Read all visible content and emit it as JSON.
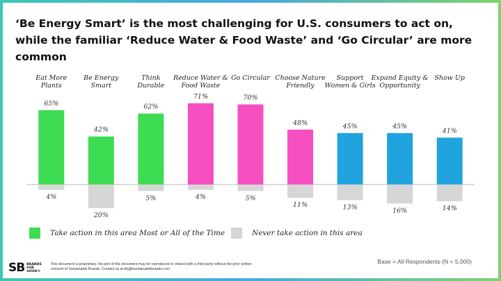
{
  "slide": {
    "title": "‘Be Energy Smart’ is the most challenging for U.S. consumers to act on, while the familiar ‘Reduce Water & Food Waste’ and ‘Go Circular’ are more common",
    "base_note": "Base = All Respondents (N = 5,000)",
    "footer_note": "This document is proprietary. No part of this document may be reproduced or shared with a third party without the prior written consent of Sustainable Brands. Contact us at bfg@sustainablebrands.com",
    "logo": {
      "mark": "SB",
      "text": "BRANDS FOR GOOD®"
    }
  },
  "colors": {
    "green": "#3ddc52",
    "pink": "#f54fc2",
    "blue": "#21a3dd",
    "gray": "#d6d6d6",
    "baseline": "#b8b8b8"
  },
  "legend": [
    {
      "label": "Take action in this area Most or All of the Time",
      "color": "#3ddc52"
    },
    {
      "label": "Never take action in this area",
      "color": "#d6d6d6"
    }
  ],
  "chart_data": {
    "type": "bar",
    "title": "",
    "categories": [
      "Eat More Plants",
      "Be Energy Smart",
      "Think Durable",
      "Reduce Water & Food Waste",
      "Go Circular",
      "Choose Nature Friendly",
      "Support Women & Girls",
      "Expand Equity & Opportunity",
      "Show Up"
    ],
    "category_label_lines": [
      [
        "Eat More",
        "Plants"
      ],
      [
        "Be Energy",
        "Smart"
      ],
      [
        "Think",
        "Durable"
      ],
      [
        "Reduce Water &",
        "Food Waste"
      ],
      [
        "Go Circular"
      ],
      [
        "Choose Nature",
        "Friendly"
      ],
      [
        "Support",
        "Women & Girls"
      ],
      [
        "Expand Equity &",
        "Opportunity"
      ],
      [
        "Show Up"
      ]
    ],
    "category_colors": [
      "green",
      "green",
      "green",
      "pink",
      "pink",
      "pink",
      "blue",
      "blue",
      "blue"
    ],
    "series": [
      {
        "name": "Take action in this area Most or All of the Time",
        "values": [
          65,
          42,
          62,
          71,
          70,
          48,
          45,
          45,
          41
        ],
        "direction": "up"
      },
      {
        "name": "Never take action in this area",
        "values": [
          4,
          20,
          5,
          4,
          5,
          11,
          13,
          16,
          14
        ],
        "direction": "down"
      }
    ],
    "value_suffix": "%",
    "ylim": [
      -25,
      75
    ],
    "grid": false
  }
}
